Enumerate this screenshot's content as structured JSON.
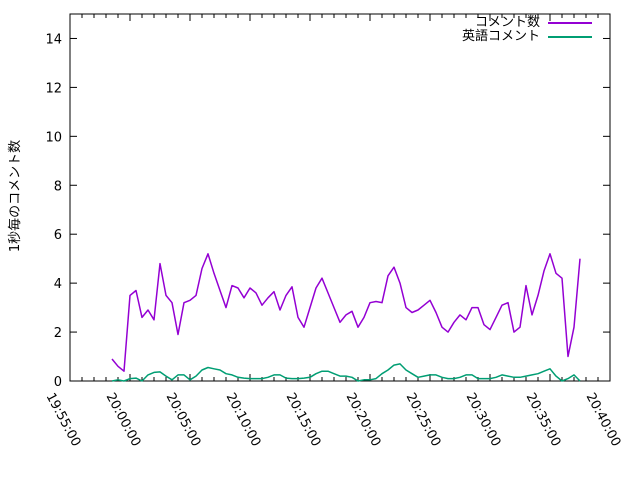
{
  "chart_data": {
    "type": "line",
    "title": "",
    "xlabel": "",
    "ylabel": "1秒毎のコメント数",
    "background_color": "#ffffff",
    "axis_color": "#000000",
    "grid": "off",
    "legend_position": "top-right-inside",
    "x_start": "19:55:00",
    "x_end": "20:40:00",
    "x_major_tick_seconds": 300,
    "x_minor_tick_seconds": 60,
    "x_tick_labels": [
      "19:55:00",
      "20:00:00",
      "20:05:00",
      "20:10:00",
      "20:15:00",
      "20:20:00",
      "20:25:00",
      "20:30:00",
      "20:35:00",
      "20:40:00"
    ],
    "y_ticks": [
      0,
      2,
      4,
      6,
      8,
      10,
      12,
      14
    ],
    "ylim": [
      0,
      15
    ],
    "series": [
      {
        "name": "コメント数",
        "color": "#9400d3",
        "start": "19:58:30",
        "interval_seconds": 30,
        "values": [
          0.9,
          0.6,
          0.4,
          3.5,
          3.7,
          2.6,
          2.9,
          2.5,
          4.8,
          3.5,
          3.2,
          1.9,
          3.2,
          3.3,
          3.5,
          4.6,
          5.2,
          4.4,
          3.7,
          3.0,
          3.9,
          3.8,
          3.4,
          3.8,
          3.6,
          3.1,
          3.4,
          3.65,
          2.9,
          3.5,
          3.85,
          2.6,
          2.2,
          3.0,
          3.8,
          4.2,
          3.6,
          3.0,
          2.4,
          2.7,
          2.85,
          2.2,
          2.6,
          3.2,
          3.25,
          3.2,
          4.3,
          4.65,
          4.0,
          3.0,
          2.8,
          2.9,
          3.1,
          3.3,
          2.8,
          2.2,
          2.0,
          2.4,
          2.7,
          2.5,
          3.0,
          3.0,
          2.3,
          2.1,
          2.6,
          3.1,
          3.2,
          2.0,
          2.2,
          3.9,
          2.7,
          3.5,
          4.5,
          5.2,
          4.4,
          4.2,
          1.0,
          2.2,
          5.0
        ]
      },
      {
        "name": "英語コメント",
        "color": "#009e73",
        "start": "19:58:30",
        "interval_seconds": 30,
        "values": [
          0.0,
          0.05,
          0.0,
          0.1,
          0.12,
          0.0,
          0.25,
          0.35,
          0.37,
          0.2,
          0.05,
          0.25,
          0.25,
          0.05,
          0.2,
          0.45,
          0.55,
          0.5,
          0.45,
          0.3,
          0.25,
          0.15,
          0.12,
          0.1,
          0.1,
          0.1,
          0.15,
          0.25,
          0.25,
          0.12,
          0.1,
          0.1,
          0.12,
          0.15,
          0.3,
          0.4,
          0.4,
          0.3,
          0.2,
          0.2,
          0.15,
          0.0,
          0.05,
          0.05,
          0.1,
          0.3,
          0.45,
          0.65,
          0.7,
          0.45,
          0.3,
          0.15,
          0.2,
          0.25,
          0.25,
          0.15,
          0.1,
          0.1,
          0.15,
          0.25,
          0.25,
          0.1,
          0.1,
          0.1,
          0.15,
          0.25,
          0.2,
          0.15,
          0.15,
          0.2,
          0.25,
          0.3,
          0.4,
          0.5,
          0.2,
          0.0,
          0.1,
          0.25,
          0.0
        ]
      }
    ]
  }
}
